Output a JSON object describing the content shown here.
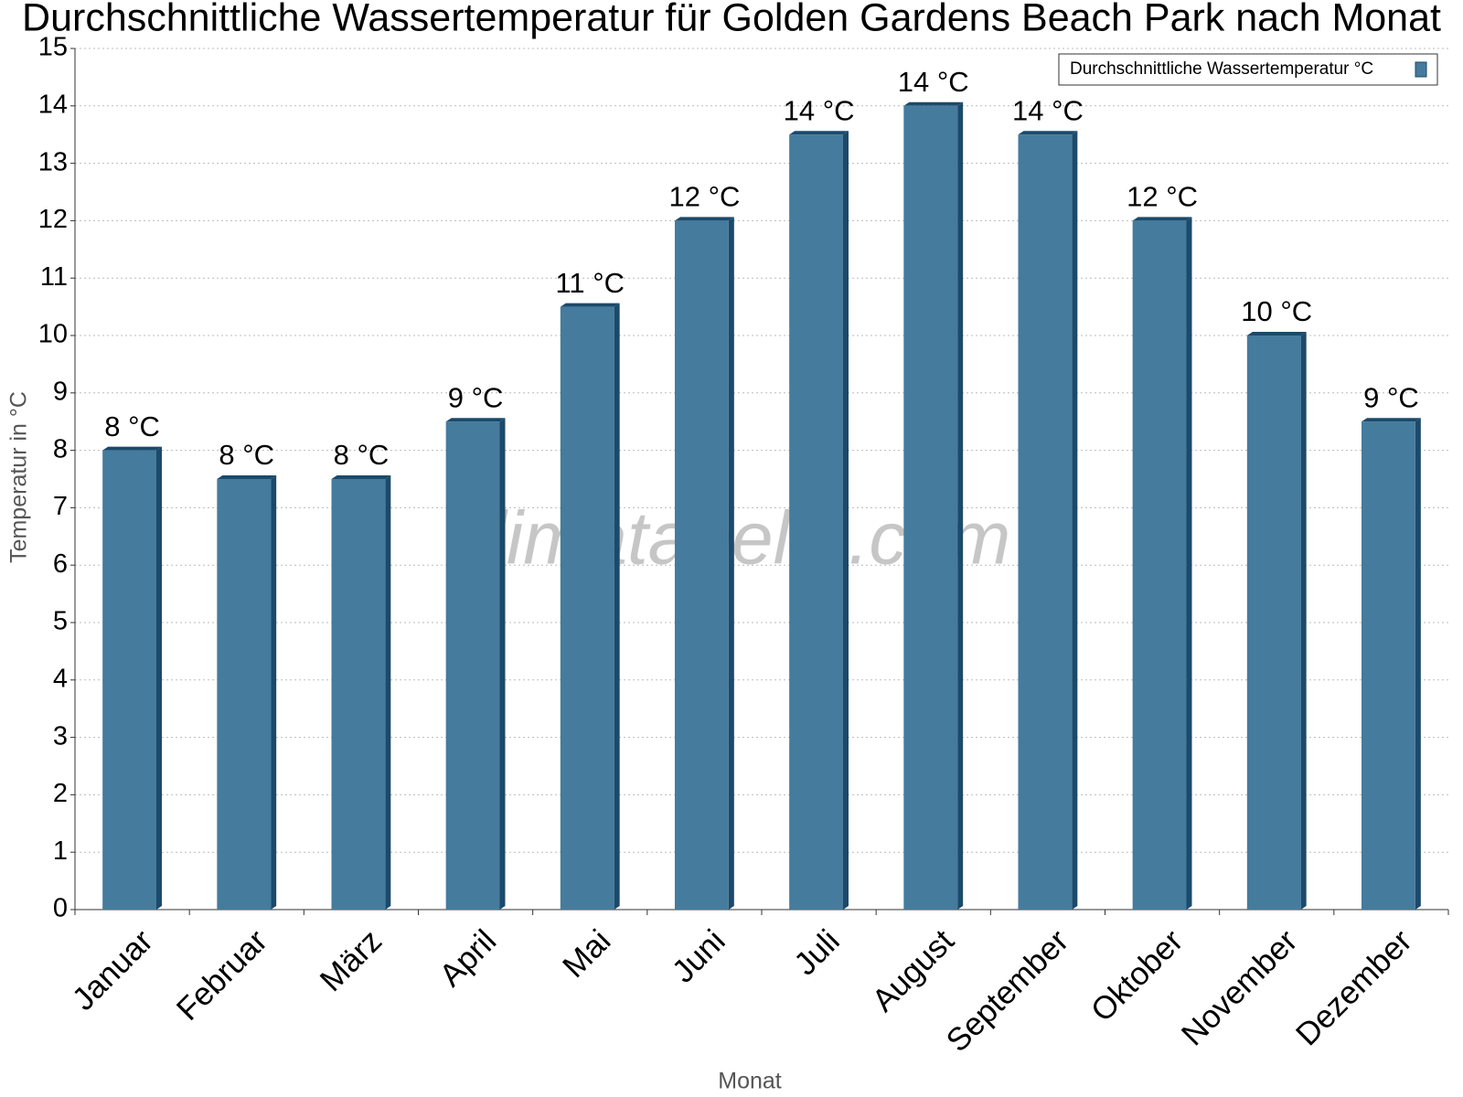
{
  "chart_data": {
    "type": "bar",
    "title": "Durchschnittliche Wassertemperatur für Golden Gardens Beach Park nach Monat",
    "watermark": "klimatabelle.com",
    "x_label": "Monat",
    "y_label": "Temperatur in °C",
    "categories": [
      "Januar",
      "Februar",
      "März",
      "April",
      "Mai",
      "Juni",
      "Juli",
      "August",
      "September",
      "Oktober",
      "November",
      "Dezember"
    ],
    "series": [
      {
        "name": "Durchschnittliche Wassertemperatur °C",
        "color": "#457b9d",
        "values": [
          8,
          7.5,
          7.5,
          8.5,
          10.5,
          12,
          13.5,
          14,
          13.5,
          12,
          10,
          8.5
        ],
        "value_labels": [
          "8 °C",
          "8 °C",
          "8 °C",
          "9 °C",
          "11 °C",
          "12 °C",
          "14 °C",
          "14 °C",
          "14 °C",
          "12 °C",
          "10 °C",
          "9 °C"
        ]
      }
    ],
    "ylim": [
      0,
      15
    ],
    "yticks": [
      0,
      1,
      2,
      3,
      4,
      5,
      6,
      7,
      8,
      9,
      10,
      11,
      12,
      13,
      14,
      15
    ],
    "grid": true,
    "legend": "top-right"
  }
}
